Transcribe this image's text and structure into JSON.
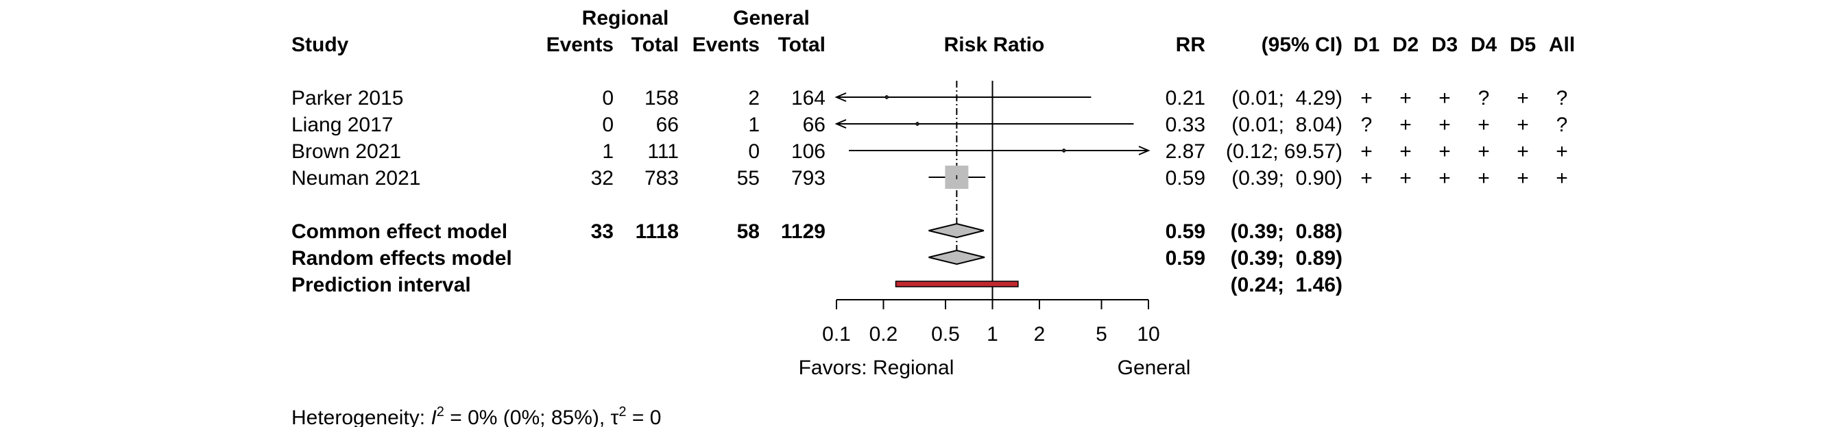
{
  "header": {
    "regional_label": "Regional",
    "general_label": "General",
    "study_label": "Study",
    "events_label": "Events",
    "total_label": "Total",
    "plot_label": "Risk Ratio",
    "rr_label": "RR",
    "ci_label": "(95% CI)",
    "rob_labels": [
      "D1",
      "D2",
      "D3",
      "D4",
      "D5",
      "All"
    ]
  },
  "chart_data": {
    "type": "forest",
    "xlabel_left": "Favors: Regional",
    "xlabel_right": "General",
    "x_scale": "log",
    "xlim": [
      0.1,
      10
    ],
    "x_ticks": [
      0.1,
      0.2,
      0.5,
      1,
      2,
      5,
      10
    ],
    "x_tick_labels": [
      "0.1",
      "0.2",
      "0.5",
      "1",
      "2",
      "5",
      "10"
    ],
    "reference_line": 1,
    "pooled_line": 0.59,
    "studies": [
      {
        "name": "Parker 2015",
        "events_regional": "0",
        "total_regional": "158",
        "events_general": "2",
        "total_general": "164",
        "rr": 0.21,
        "lower": 0.01,
        "upper": 4.29,
        "rr_text": "0.21",
        "ci_text": "(0.01;  4.29)",
        "rob": [
          "+",
          "+",
          "+",
          "?",
          "+",
          "?"
        ],
        "weight": 0.01
      },
      {
        "name": "Liang 2017",
        "events_regional": "0",
        "total_regional": "66",
        "events_general": "1",
        "total_general": "66",
        "rr": 0.33,
        "lower": 0.01,
        "upper": 8.04,
        "rr_text": "0.33",
        "ci_text": "(0.01;  8.04)",
        "rob": [
          "?",
          "+",
          "+",
          "+",
          "+",
          "?"
        ],
        "weight": 0.01
      },
      {
        "name": "Brown 2021",
        "events_regional": "1",
        "total_regional": "111",
        "events_general": "0",
        "total_general": "106",
        "rr": 2.87,
        "lower": 0.12,
        "upper": 69.57,
        "rr_text": "2.87",
        "ci_text": "(0.12; 69.57)",
        "rob": [
          "+",
          "+",
          "+",
          "+",
          "+",
          "+"
        ],
        "weight": 0.01
      },
      {
        "name": "Neuman 2021",
        "events_regional": "32",
        "total_regional": "783",
        "events_general": "55",
        "total_general": "793",
        "rr": 0.59,
        "lower": 0.39,
        "upper": 0.9,
        "rr_text": "0.59",
        "ci_text": "(0.39;  0.90)",
        "rob": [
          "+",
          "+",
          "+",
          "+",
          "+",
          "+"
        ],
        "weight": 1
      }
    ],
    "summaries": [
      {
        "name": "Common effect model",
        "events_regional": "33",
        "total_regional": "1118",
        "events_general": "58",
        "total_general": "1129",
        "rr": 0.59,
        "lower": 0.39,
        "upper": 0.88,
        "rr_text": "0.59",
        "ci_text": "(0.39;  0.88)"
      },
      {
        "name": "Random effects model",
        "rr": 0.59,
        "lower": 0.39,
        "upper": 0.89,
        "rr_text": "0.59",
        "ci_text": "(0.39;  0.89)"
      }
    ],
    "prediction_interval": {
      "name": "Prediction interval",
      "lower": 0.24,
      "upper": 1.46,
      "ci_text": "(0.24;  1.46)",
      "color": "#c0282f"
    },
    "heterogeneity": {
      "prefix": "Heterogeneity: ",
      "i2_symbol": "I",
      "i2_sup": "2",
      "i2_value": " = 0% (0%; 85%), ",
      "tau_symbol": "τ",
      "tau_sup": "2",
      "tau_value": " = 0"
    },
    "colors": {
      "study_square": "#bdbdbd",
      "diamond_fill": "#bdbdbd",
      "prediction_bar": "#c0282f",
      "lines": "#000000"
    }
  }
}
